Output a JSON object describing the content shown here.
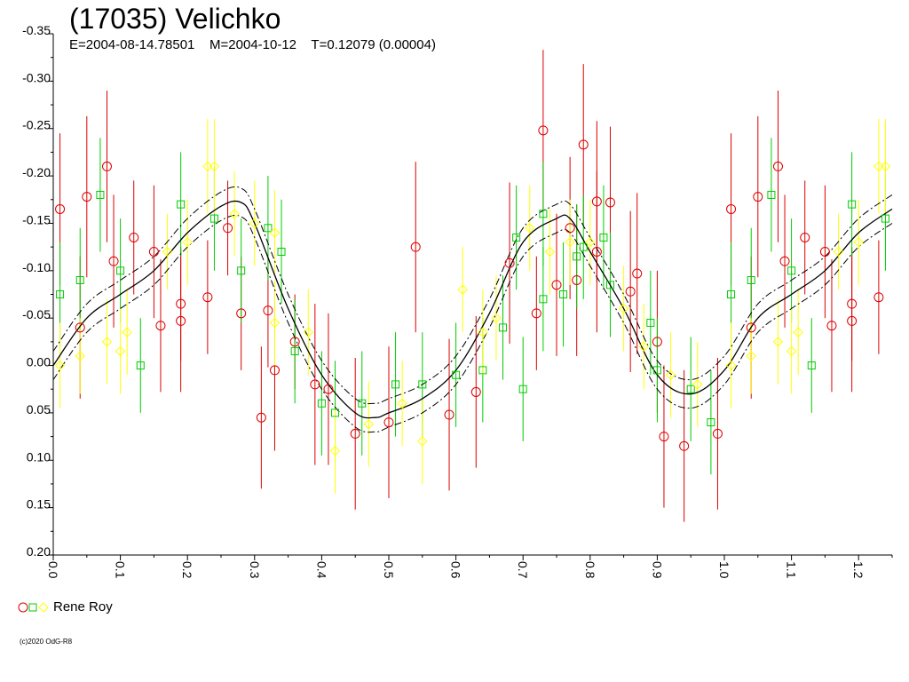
{
  "header": {
    "title": "(17035) Velichko",
    "subtitle": "E=2004-08-14.78501    M=2004-10-12    T=0.12079 (0.00004)"
  },
  "legend": {
    "observer": "Rene Roy"
  },
  "footer": {
    "copyright": "(c)2020 OdG-R8"
  },
  "colors": {
    "red": "#dd0000",
    "green": "#00cc00",
    "yellow": "#ffff00",
    "axis": "#000000"
  },
  "chart_data": {
    "type": "scatter",
    "title": "(17035) Velichko",
    "xlabel": "",
    "ylabel": "",
    "xlim": [
      0.0,
      1.25
    ],
    "ylim": [
      -0.35,
      0.2
    ],
    "y_inverted": true,
    "x_ticks": [
      "0.0",
      "0.1",
      "0.2",
      "0.3",
      "0.4",
      "0.5",
      "0.6",
      "0.7",
      "0.8",
      "0.9",
      "1.0",
      "1.1",
      "1.2"
    ],
    "y_ticks": [
      "-0.35",
      "-0.30",
      "-0.25",
      "-0.20",
      "-0.15",
      "-0.10",
      "-0.05",
      "0.00",
      "0.05",
      "0.10",
      "0.15",
      "0.20"
    ],
    "fit_curve": {
      "x": [
        0.0,
        0.05,
        0.1,
        0.15,
        0.2,
        0.25,
        0.28,
        0.3,
        0.35,
        0.4,
        0.45,
        0.48,
        0.5,
        0.55,
        0.6,
        0.65,
        0.7,
        0.75,
        0.77,
        0.8,
        0.85,
        0.9,
        0.95,
        1.0,
        1.05,
        1.1,
        1.15,
        1.2,
        1.25
      ],
      "y": [
        0.0,
        -0.05,
        -0.075,
        -0.1,
        -0.14,
        -0.168,
        -0.172,
        -0.15,
        -0.06,
        0.01,
        0.05,
        0.055,
        0.05,
        0.035,
        0.005,
        -0.055,
        -0.13,
        -0.155,
        -0.155,
        -0.12,
        -0.06,
        0.01,
        0.03,
        0.005,
        -0.05,
        -0.075,
        -0.1,
        -0.14,
        -0.165
      ],
      "band": 0.015
    },
    "series": [
      {
        "name": "Rene Roy",
        "marker": "circle",
        "color": "red",
        "points": [
          {
            "x": 0.01,
            "y": -0.165,
            "e": 0.08
          },
          {
            "x": 0.04,
            "y": -0.04,
            "e": 0.075
          },
          {
            "x": 0.05,
            "y": -0.178,
            "e": 0.085
          },
          {
            "x": 0.08,
            "y": -0.21,
            "e": 0.08
          },
          {
            "x": 0.09,
            "y": -0.11,
            "e": 0.07
          },
          {
            "x": 0.12,
            "y": -0.135,
            "e": 0.06
          },
          {
            "x": 0.15,
            "y": -0.12,
            "e": 0.07
          },
          {
            "x": 0.16,
            "y": -0.042,
            "e": 0.07
          },
          {
            "x": 0.19,
            "y": -0.065,
            "e": 0.06
          },
          {
            "x": 0.19,
            "y": -0.047,
            "e": 0.075
          },
          {
            "x": 0.23,
            "y": -0.072,
            "e": 0.06
          },
          {
            "x": 0.26,
            "y": -0.145,
            "e": 0.05
          },
          {
            "x": 0.28,
            "y": -0.055,
            "e": 0.06
          },
          {
            "x": 0.31,
            "y": 0.055,
            "e": 0.075
          },
          {
            "x": 0.32,
            "y": -0.058,
            "e": 0.06
          },
          {
            "x": 0.33,
            "y": 0.005,
            "e": 0.085
          },
          {
            "x": 0.36,
            "y": -0.025,
            "e": 0.05
          },
          {
            "x": 0.39,
            "y": 0.02,
            "e": 0.085
          },
          {
            "x": 0.41,
            "y": 0.025,
            "e": 0.08
          },
          {
            "x": 0.45,
            "y": 0.072,
            "e": 0.08
          },
          {
            "x": 0.5,
            "y": 0.06,
            "e": 0.08
          },
          {
            "x": 0.54,
            "y": -0.125,
            "e": 0.09
          },
          {
            "x": 0.59,
            "y": 0.052,
            "e": 0.08
          },
          {
            "x": 0.63,
            "y": 0.028,
            "e": 0.08
          },
          {
            "x": 0.68,
            "y": -0.108,
            "e": 0.085
          },
          {
            "x": 0.72,
            "y": -0.055,
            "e": 0.06
          },
          {
            "x": 0.73,
            "y": -0.248,
            "e": 0.085
          },
          {
            "x": 0.75,
            "y": -0.085,
            "e": 0.075
          },
          {
            "x": 0.77,
            "y": -0.145,
            "e": 0.075
          },
          {
            "x": 0.78,
            "y": -0.09,
            "e": 0.08
          },
          {
            "x": 0.79,
            "y": -0.233,
            "e": 0.085
          },
          {
            "x": 0.81,
            "y": -0.173,
            "e": 0.085
          },
          {
            "x": 0.81,
            "y": -0.12,
            "e": 0.085
          },
          {
            "x": 0.83,
            "y": -0.172,
            "e": 0.08
          },
          {
            "x": 0.86,
            "y": -0.078,
            "e": 0.085
          },
          {
            "x": 0.87,
            "y": -0.097,
            "e": 0.085
          },
          {
            "x": 0.9,
            "y": -0.025,
            "e": 0.075
          },
          {
            "x": 0.91,
            "y": 0.075,
            "e": 0.075
          },
          {
            "x": 0.94,
            "y": 0.085,
            "e": 0.08
          },
          {
            "x": 0.99,
            "y": 0.072,
            "e": 0.08
          },
          {
            "x": 1.01,
            "y": -0.165,
            "e": 0.08
          },
          {
            "x": 1.04,
            "y": -0.04,
            "e": 0.075
          },
          {
            "x": 1.05,
            "y": -0.178,
            "e": 0.085
          },
          {
            "x": 1.08,
            "y": -0.21,
            "e": 0.08
          },
          {
            "x": 1.09,
            "y": -0.11,
            "e": 0.07
          },
          {
            "x": 1.12,
            "y": -0.135,
            "e": 0.06
          },
          {
            "x": 1.15,
            "y": -0.12,
            "e": 0.07
          },
          {
            "x": 1.16,
            "y": -0.042,
            "e": 0.07
          },
          {
            "x": 1.19,
            "y": -0.065,
            "e": 0.06
          },
          {
            "x": 1.19,
            "y": -0.047,
            "e": 0.075
          },
          {
            "x": 1.23,
            "y": -0.072,
            "e": 0.06
          }
        ]
      },
      {
        "name": "Rene Roy",
        "marker": "square",
        "color": "green",
        "points": [
          {
            "x": 0.01,
            "y": -0.075,
            "e": 0.055
          },
          {
            "x": 0.04,
            "y": -0.09,
            "e": 0.055
          },
          {
            "x": 0.07,
            "y": -0.18,
            "e": 0.06
          },
          {
            "x": 0.1,
            "y": -0.1,
            "e": 0.055
          },
          {
            "x": 0.13,
            "y": 0.0,
            "e": 0.05
          },
          {
            "x": 0.19,
            "y": -0.17,
            "e": 0.055
          },
          {
            "x": 0.24,
            "y": -0.155,
            "e": 0.055
          },
          {
            "x": 0.28,
            "y": -0.1,
            "e": 0.055
          },
          {
            "x": 0.32,
            "y": -0.145,
            "e": 0.055
          },
          {
            "x": 0.34,
            "y": -0.12,
            "e": 0.055
          },
          {
            "x": 0.36,
            "y": -0.015,
            "e": 0.055
          },
          {
            "x": 0.4,
            "y": 0.04,
            "e": 0.055
          },
          {
            "x": 0.42,
            "y": 0.05,
            "e": 0.055
          },
          {
            "x": 0.46,
            "y": 0.04,
            "e": 0.055
          },
          {
            "x": 0.51,
            "y": 0.02,
            "e": 0.055
          },
          {
            "x": 0.55,
            "y": 0.02,
            "e": 0.055
          },
          {
            "x": 0.6,
            "y": 0.01,
            "e": 0.055
          },
          {
            "x": 0.64,
            "y": 0.005,
            "e": 0.055
          },
          {
            "x": 0.67,
            "y": -0.04,
            "e": 0.055
          },
          {
            "x": 0.69,
            "y": -0.135,
            "e": 0.055
          },
          {
            "x": 0.7,
            "y": 0.025,
            "e": 0.055
          },
          {
            "x": 0.73,
            "y": -0.07,
            "e": 0.055
          },
          {
            "x": 0.73,
            "y": -0.16,
            "e": 0.055
          },
          {
            "x": 0.76,
            "y": -0.075,
            "e": 0.055
          },
          {
            "x": 0.78,
            "y": -0.115,
            "e": 0.055
          },
          {
            "x": 0.79,
            "y": -0.125,
            "e": 0.055
          },
          {
            "x": 0.82,
            "y": -0.135,
            "e": 0.055
          },
          {
            "x": 0.83,
            "y": -0.085,
            "e": 0.055
          },
          {
            "x": 0.89,
            "y": -0.045,
            "e": 0.055
          },
          {
            "x": 0.9,
            "y": 0.005,
            "e": 0.055
          },
          {
            "x": 0.95,
            "y": 0.025,
            "e": 0.055
          },
          {
            "x": 0.98,
            "y": 0.06,
            "e": 0.055
          },
          {
            "x": 1.01,
            "y": -0.075,
            "e": 0.055
          },
          {
            "x": 1.04,
            "y": -0.09,
            "e": 0.055
          },
          {
            "x": 1.07,
            "y": -0.18,
            "e": 0.06
          },
          {
            "x": 1.1,
            "y": -0.1,
            "e": 0.055
          },
          {
            "x": 1.13,
            "y": 0.0,
            "e": 0.05
          },
          {
            "x": 1.19,
            "y": -0.17,
            "e": 0.055
          },
          {
            "x": 1.24,
            "y": -0.155,
            "e": 0.055
          }
        ]
      },
      {
        "name": "Rene Roy",
        "marker": "diamond",
        "color": "yellow",
        "points": [
          {
            "x": 0.01,
            "y": 0.0,
            "e": 0.045
          },
          {
            "x": 0.04,
            "y": -0.01,
            "e": 0.04
          },
          {
            "x": 0.08,
            "y": -0.025,
            "e": 0.045
          },
          {
            "x": 0.1,
            "y": -0.015,
            "e": 0.045
          },
          {
            "x": 0.11,
            "y": -0.035,
            "e": 0.045
          },
          {
            "x": 0.17,
            "y": -0.12,
            "e": 0.04
          },
          {
            "x": 0.2,
            "y": -0.13,
            "e": 0.045
          },
          {
            "x": 0.23,
            "y": -0.21,
            "e": 0.05
          },
          {
            "x": 0.24,
            "y": -0.21,
            "e": 0.05
          },
          {
            "x": 0.27,
            "y": -0.16,
            "e": 0.045
          },
          {
            "x": 0.3,
            "y": -0.15,
            "e": 0.045
          },
          {
            "x": 0.33,
            "y": -0.14,
            "e": 0.045
          },
          {
            "x": 0.33,
            "y": -0.045,
            "e": 0.045
          },
          {
            "x": 0.38,
            "y": -0.035,
            "e": 0.045
          },
          {
            "x": 0.42,
            "y": 0.09,
            "e": 0.045
          },
          {
            "x": 0.47,
            "y": 0.062,
            "e": 0.045
          },
          {
            "x": 0.52,
            "y": 0.04,
            "e": 0.045
          },
          {
            "x": 0.55,
            "y": 0.08,
            "e": 0.045
          },
          {
            "x": 0.61,
            "y": -0.08,
            "e": 0.045
          },
          {
            "x": 0.64,
            "y": -0.035,
            "e": 0.045
          },
          {
            "x": 0.66,
            "y": -0.05,
            "e": 0.045
          },
          {
            "x": 0.71,
            "y": -0.145,
            "e": 0.045
          },
          {
            "x": 0.74,
            "y": -0.12,
            "e": 0.045
          },
          {
            "x": 0.77,
            "y": -0.13,
            "e": 0.045
          },
          {
            "x": 0.8,
            "y": -0.13,
            "e": 0.045
          },
          {
            "x": 0.85,
            "y": -0.06,
            "e": 0.045
          },
          {
            "x": 0.88,
            "y": -0.02,
            "e": 0.045
          },
          {
            "x": 0.92,
            "y": 0.01,
            "e": 0.045
          },
          {
            "x": 0.96,
            "y": 0.02,
            "e": 0.045
          },
          {
            "x": 1.01,
            "y": 0.0,
            "e": 0.045
          },
          {
            "x": 1.04,
            "y": -0.01,
            "e": 0.04
          },
          {
            "x": 1.08,
            "y": -0.025,
            "e": 0.045
          },
          {
            "x": 1.1,
            "y": -0.015,
            "e": 0.045
          },
          {
            "x": 1.11,
            "y": -0.035,
            "e": 0.045
          },
          {
            "x": 1.17,
            "y": -0.12,
            "e": 0.04
          },
          {
            "x": 1.2,
            "y": -0.13,
            "e": 0.045
          },
          {
            "x": 1.23,
            "y": -0.21,
            "e": 0.05
          },
          {
            "x": 1.24,
            "y": -0.21,
            "e": 0.05
          }
        ]
      }
    ]
  }
}
